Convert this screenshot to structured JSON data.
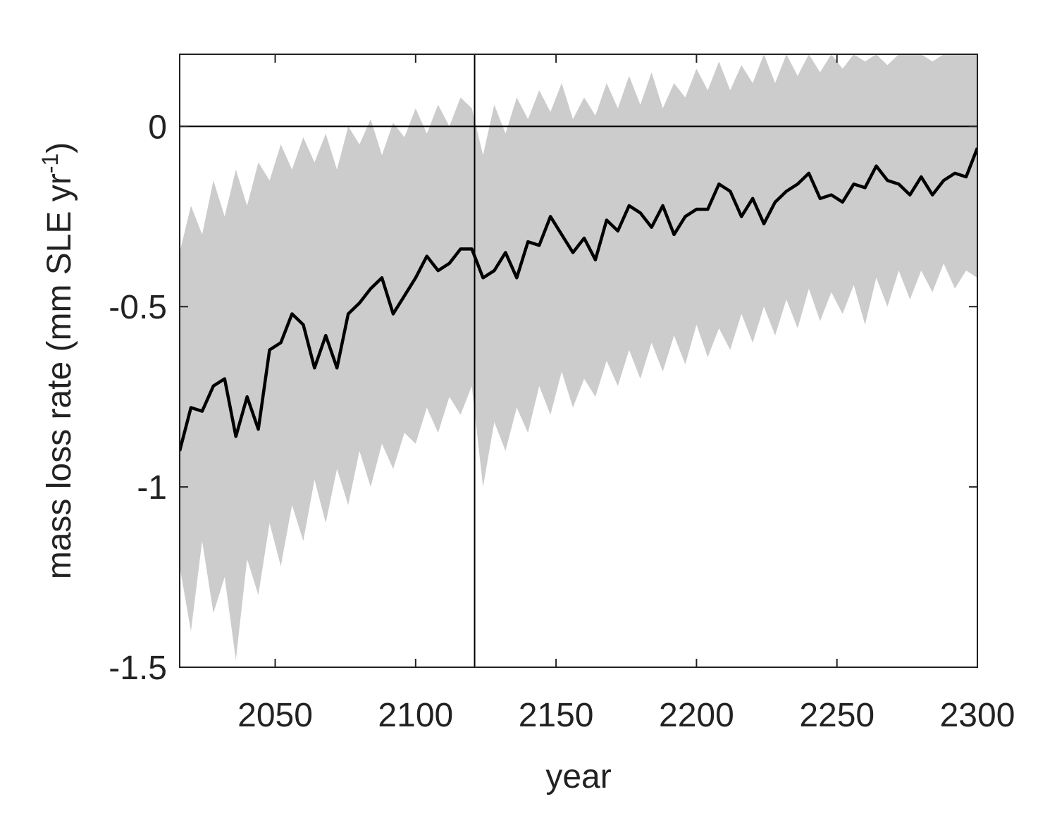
{
  "chart_data": {
    "type": "line",
    "xlabel": "year",
    "ylabel": [
      "mass loss rate (mm SLE yr",
      "-1",
      ")"
    ],
    "xlim": [
      2016,
      2300
    ],
    "ylim": [
      -1.5,
      0.2
    ],
    "xticks": [
      2050,
      2100,
      2150,
      2200,
      2250,
      2300
    ],
    "yticks": [
      -1.5,
      -1,
      -0.5,
      0
    ],
    "vlines": [
      2121
    ],
    "hlines": [
      0
    ],
    "x": [
      2016,
      2020,
      2024,
      2028,
      2032,
      2036,
      2040,
      2044,
      2048,
      2052,
      2056,
      2060,
      2064,
      2068,
      2072,
      2076,
      2080,
      2084,
      2088,
      2092,
      2096,
      2100,
      2104,
      2108,
      2112,
      2116,
      2120,
      2124,
      2128,
      2132,
      2136,
      2140,
      2144,
      2148,
      2152,
      2156,
      2160,
      2164,
      2168,
      2172,
      2176,
      2180,
      2184,
      2188,
      2192,
      2196,
      2200,
      2204,
      2208,
      2212,
      2216,
      2220,
      2224,
      2228,
      2232,
      2236,
      2240,
      2244,
      2248,
      2252,
      2256,
      2260,
      2264,
      2268,
      2272,
      2276,
      2280,
      2284,
      2288,
      2292,
      2296,
      2300
    ],
    "band": {
      "color": "#cccccc",
      "upper": [
        -0.35,
        -0.22,
        -0.3,
        -0.15,
        -0.25,
        -0.12,
        -0.22,
        -0.1,
        -0.15,
        -0.05,
        -0.12,
        -0.03,
        -0.1,
        -0.02,
        -0.12,
        0.0,
        -0.05,
        0.02,
        -0.08,
        0.01,
        -0.03,
        0.05,
        -0.02,
        0.06,
        0.0,
        0.08,
        0.05,
        -0.08,
        0.06,
        -0.02,
        0.08,
        0.02,
        0.1,
        0.04,
        0.12,
        0.02,
        0.08,
        0.03,
        0.12,
        0.05,
        0.14,
        0.06,
        0.15,
        0.05,
        0.12,
        0.08,
        0.16,
        0.1,
        0.18,
        0.1,
        0.17,
        0.12,
        0.2,
        0.12,
        0.2,
        0.14,
        0.2,
        0.15,
        0.2,
        0.16,
        0.2,
        0.18,
        0.2,
        0.17,
        0.2,
        0.2,
        0.2,
        0.18,
        0.2,
        0.2,
        0.2,
        0.2
      ],
      "lower": [
        -1.22,
        -1.4,
        -1.15,
        -1.35,
        -1.25,
        -1.48,
        -1.2,
        -1.3,
        -1.1,
        -1.22,
        -1.05,
        -1.15,
        -0.98,
        -1.1,
        -0.95,
        -1.05,
        -0.9,
        -1.0,
        -0.88,
        -0.95,
        -0.85,
        -0.88,
        -0.78,
        -0.85,
        -0.75,
        -0.8,
        -0.72,
        -1.0,
        -0.82,
        -0.9,
        -0.78,
        -0.85,
        -0.72,
        -0.8,
        -0.68,
        -0.78,
        -0.7,
        -0.75,
        -0.65,
        -0.72,
        -0.62,
        -0.7,
        -0.6,
        -0.68,
        -0.58,
        -0.66,
        -0.55,
        -0.64,
        -0.56,
        -0.62,
        -0.52,
        -0.6,
        -0.5,
        -0.58,
        -0.48,
        -0.56,
        -0.45,
        -0.54,
        -0.46,
        -0.52,
        -0.44,
        -0.55,
        -0.42,
        -0.5,
        -0.4,
        -0.48,
        -0.4,
        -0.46,
        -0.38,
        -0.45,
        -0.4,
        -0.42
      ]
    },
    "series": [
      {
        "color": "#000000",
        "values": [
          -0.9,
          -0.78,
          -0.79,
          -0.72,
          -0.7,
          -0.86,
          -0.75,
          -0.84,
          -0.62,
          -0.6,
          -0.52,
          -0.55,
          -0.67,
          -0.58,
          -0.67,
          -0.52,
          -0.49,
          -0.45,
          -0.42,
          -0.52,
          -0.47,
          -0.42,
          -0.36,
          -0.4,
          -0.38,
          -0.34,
          -0.34,
          -0.42,
          -0.4,
          -0.35,
          -0.42,
          -0.32,
          -0.33,
          -0.25,
          -0.3,
          -0.35,
          -0.31,
          -0.37,
          -0.26,
          -0.29,
          -0.22,
          -0.24,
          -0.28,
          -0.22,
          -0.3,
          -0.25,
          -0.23,
          -0.23,
          -0.16,
          -0.18,
          -0.25,
          -0.2,
          -0.27,
          -0.21,
          -0.18,
          -0.16,
          -0.13,
          -0.2,
          -0.19,
          -0.21,
          -0.16,
          -0.17,
          -0.11,
          -0.15,
          -0.16,
          -0.19,
          -0.14,
          -0.19,
          -0.15,
          -0.13,
          -0.14,
          -0.06
        ]
      }
    ]
  }
}
